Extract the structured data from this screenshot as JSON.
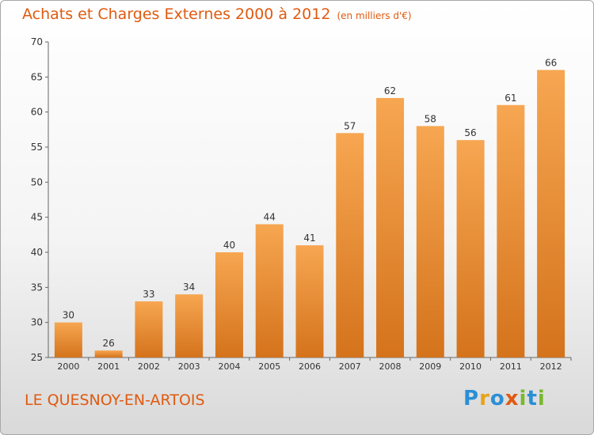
{
  "title": "Achats et Charges Externes 2000 à 2012",
  "unit_label": "(en milliers d'€)",
  "commune": "LE QUESNOY-EN-ARTOIS",
  "logo": {
    "text": "Proxiti",
    "letters": [
      {
        "char": "P",
        "color": "#2a8fd6"
      },
      {
        "char": "r",
        "color": "#e8a21a"
      },
      {
        "char": "o",
        "color": "#2a8fd6"
      },
      {
        "char": "x",
        "color": "#e05a10"
      },
      {
        "char": "i",
        "color": "#79b82c"
      },
      {
        "char": "t",
        "color": "#2a8fd6"
      },
      {
        "char": "i",
        "color": "#79b82c"
      }
    ]
  },
  "colors": {
    "bar_top": "#f7a651",
    "bar_bottom": "#d4731c",
    "text": "#333333",
    "accent": "#e05a10"
  },
  "chart_data": {
    "type": "bar",
    "title": "Achats et Charges Externes 2000 à 2012",
    "xlabel": "",
    "ylabel": "",
    "categories": [
      "2000",
      "2001",
      "2002",
      "2003",
      "2004",
      "2005",
      "2006",
      "2007",
      "2008",
      "2009",
      "2010",
      "2011",
      "2012"
    ],
    "values": [
      30,
      26,
      33,
      34,
      40,
      44,
      41,
      57,
      62,
      58,
      56,
      61,
      66
    ],
    "ylim": [
      25,
      70
    ],
    "yticks": [
      25,
      30,
      35,
      40,
      45,
      50,
      55,
      60,
      65,
      70
    ],
    "grid": false,
    "legend": "none"
  }
}
